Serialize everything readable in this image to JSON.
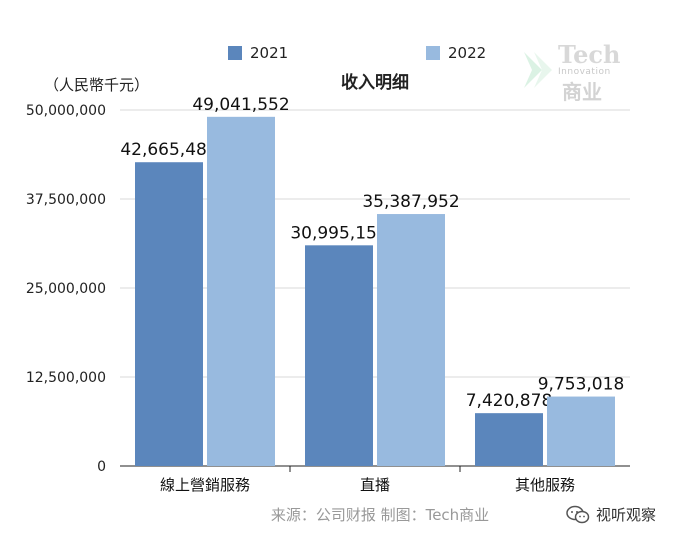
{
  "legend": [
    {
      "label": "2021",
      "color": "#5b86bc"
    },
    {
      "label": "2022",
      "color": "#98badf"
    }
  ],
  "unit_label": "（人民幣千元）",
  "watermark": {
    "line1": "Tech",
    "line2": "Innovation",
    "line3": "商业"
  },
  "footer": {
    "source": "来源：公司财报 制图：Tech商业",
    "brand": "视听观察",
    "brand_icon": "wechat-icon"
  },
  "chart_data": {
    "type": "bar",
    "title": "收入明细",
    "categories": [
      "線上營銷服務",
      "直播",
      "其他服務"
    ],
    "series": [
      {
        "name": "2021",
        "color": "#5b86bc",
        "values": [
          42665483,
          30995152,
          7420878
        ],
        "labels": [
          "42,665,483",
          "30,995,152",
          "7,420,878"
        ]
      },
      {
        "name": "2022",
        "color": "#98badf",
        "values": [
          49041552,
          35387952,
          9753018
        ],
        "labels": [
          "49,041,552",
          "35,387,952",
          "9,753,018"
        ]
      }
    ],
    "ylim": [
      0,
      50000000
    ],
    "yticks": [
      0,
      12500000,
      25000000,
      37500000,
      50000000
    ],
    "ytick_labels": [
      "0",
      "12,500,000",
      "25,000,000",
      "37,500,000",
      "50,000,000"
    ],
    "grid": true,
    "legend_position": "top",
    "xlabel": "",
    "ylabel": ""
  }
}
